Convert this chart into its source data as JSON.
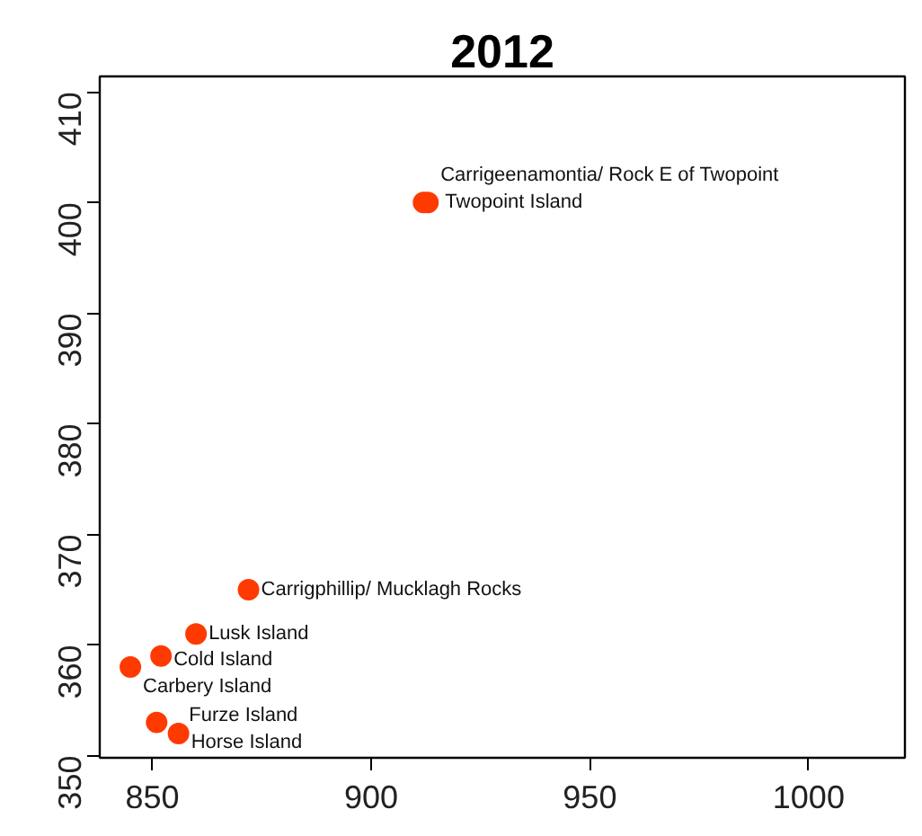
{
  "chart_data": {
    "type": "scatter",
    "title": "2012",
    "x": [
      912,
      913,
      872,
      860,
      852,
      845,
      851,
      856
    ],
    "values": [
      400,
      400,
      365,
      361,
      359,
      358,
      353,
      352
    ],
    "color": "#ff3a00",
    "marker": "circle",
    "xlim": [
      838,
      1022
    ],
    "ylim": [
      349.8,
      411.4
    ],
    "xticks": [
      850,
      900,
      950,
      1000
    ],
    "yticks": [
      350,
      360,
      370,
      380,
      390,
      400,
      410
    ],
    "annotations": [
      {
        "text": "Twopoint Island",
        "x": 912,
        "y": 400
      },
      {
        "text": "Carrigeenamontia/ Rock E of Twopoint",
        "x": 913,
        "y": 400
      },
      {
        "text": "Carrigphillip/ Mucklagh Rocks",
        "x": 872,
        "y": 365
      },
      {
        "text": "Lusk Island",
        "x": 860,
        "y": 361
      },
      {
        "text": "Cold Island",
        "x": 852,
        "y": 359
      },
      {
        "text": "Carbery Island",
        "x": 845,
        "y": 358
      },
      {
        "text": "Furze Island",
        "x": 851,
        "y": 353
      },
      {
        "text": "Horse Island",
        "x": 856,
        "y": 352
      }
    ]
  }
}
